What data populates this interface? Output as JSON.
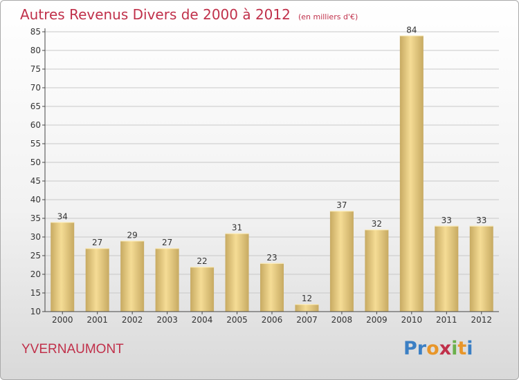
{
  "header": {
    "title": "Autres Revenus Divers de 2000 à 2012",
    "unit": "(en milliers d'€)"
  },
  "footer": {
    "town": "YVERNAUMONT",
    "logo_letters": [
      "P",
      "r",
      "o",
      "x",
      "i",
      "t",
      "i"
    ],
    "logo_colors": [
      "#3b7fc4",
      "#3b7fc4",
      "#e8962a",
      "#c0304a",
      "#6ab04c",
      "#e8962a",
      "#3b7fc4"
    ]
  },
  "colors": {
    "bar_light": "#f5dc95",
    "bar_dark": "#c7aa62",
    "grid": "#c8c8c8",
    "axis": "#444444",
    "text": "#333333",
    "accent": "#c0304a"
  },
  "chart_data": {
    "type": "bar",
    "categories": [
      "2000",
      "2001",
      "2002",
      "2003",
      "2004",
      "2005",
      "2006",
      "2007",
      "2008",
      "2009",
      "2010",
      "2011",
      "2012"
    ],
    "values": [
      34,
      27,
      29,
      27,
      22,
      31,
      23,
      12,
      37,
      32,
      84,
      33,
      33
    ],
    "ylim": [
      10,
      85
    ],
    "yticks": [
      10,
      15,
      20,
      25,
      30,
      35,
      40,
      45,
      50,
      55,
      60,
      65,
      70,
      75,
      80,
      85
    ],
    "grid": true,
    "data_labels": true
  }
}
